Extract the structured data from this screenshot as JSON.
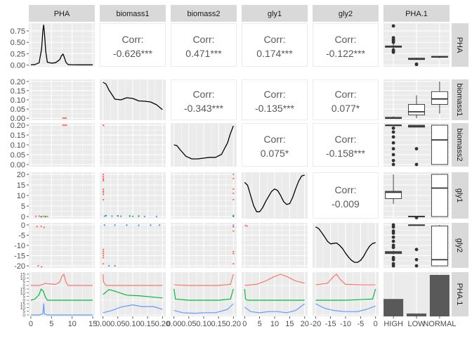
{
  "chart_data": {
    "type": "scatter",
    "variables": [
      "PHA",
      "biomass1",
      "biomass2",
      "gly1",
      "gly2",
      "PHA.1"
    ],
    "strip_labels_top": [
      "PHA",
      "biomass1",
      "biomass2",
      "gly1",
      "gly2",
      "PHA.1"
    ],
    "strip_labels_right": [
      "PHA",
      "biomass1",
      "biomass2",
      "gly1",
      "gly2",
      "PHA.1"
    ],
    "x_axes": [
      {
        "var": "PHA",
        "ticks": [
          0,
          5,
          10,
          15
        ],
        "labels": [
          "0",
          "5",
          "10",
          "15"
        ],
        "range": [
          -0.5,
          15.5
        ]
      },
      {
        "var": "biomass1",
        "ticks": [
          0,
          0.05,
          0.1,
          0.15,
          0.2
        ],
        "labels": [
          "0.00",
          "0.05",
          "0.10",
          "0.15",
          "0.20"
        ],
        "range": [
          -0.011,
          0.211
        ]
      },
      {
        "var": "biomass2",
        "ticks": [
          0,
          0.05,
          0.1,
          0.15,
          0.2
        ],
        "labels": [
          "0.00",
          "0.05",
          "0.10",
          "0.15",
          "0.20"
        ],
        "range": [
          -0.011,
          0.211
        ]
      },
      {
        "var": "gly1",
        "ticks": [
          0,
          5,
          10,
          15,
          20
        ],
        "labels": [
          "0",
          "5",
          "10",
          "15",
          "20"
        ],
        "range": [
          -1,
          21
        ]
      },
      {
        "var": "gly2",
        "ticks": [
          -20,
          -15,
          -10,
          -5,
          0
        ],
        "labels": [
          "-20",
          "-15",
          "-10",
          "-5",
          "0"
        ],
        "range": [
          -21,
          1
        ]
      },
      {
        "var": "PHA.1",
        "categories": [
          "HIGH",
          "LOW",
          "NORMAL"
        ],
        "labels": [
          "HIGH",
          "LOW",
          "NORMAL"
        ]
      }
    ],
    "y_axes": [
      {
        "var": "PHA",
        "ticks": [
          0,
          0.25,
          0.5,
          0.75
        ],
        "labels": [
          "0.00",
          "0.25",
          "0.50",
          "0.75"
        ],
        "range": [
          -0.04,
          0.92
        ]
      },
      {
        "var": "biomass1",
        "ticks": [
          0,
          0.05,
          0.1,
          0.15,
          0.2
        ],
        "labels": [
          "0.00",
          "0.05",
          "0.10",
          "0.15",
          "0.20"
        ],
        "range": [
          -0.011,
          0.211
        ]
      },
      {
        "var": "biomass2",
        "ticks": [
          0,
          0.05,
          0.1,
          0.15,
          0.2
        ],
        "labels": [
          "0.00",
          "0.05",
          "0.10",
          "0.15",
          "0.20"
        ],
        "range": [
          -0.011,
          0.211
        ]
      },
      {
        "var": "gly1",
        "ticks": [
          0,
          5,
          10,
          15,
          20
        ],
        "labels": [
          "0",
          "5",
          "10",
          "15",
          "20"
        ],
        "range": [
          -1,
          21
        ]
      },
      {
        "var": "gly2",
        "ticks": [
          -20,
          -15,
          -10,
          -5,
          0
        ],
        "labels": [
          "-20",
          "-15",
          "-10",
          "-5",
          "0"
        ],
        "range": [
          -21,
          1
        ]
      },
      {
        "var": "PHA.1",
        "sub_ticks": [
          0,
          5,
          10,
          15
        ],
        "sub_labels": [
          "0",
          "5",
          "10",
          "15"
        ]
      }
    ],
    "correlations": [
      {
        "x": "biomass1",
        "y": "PHA",
        "title": "Corr:",
        "value": "-0.626***"
      },
      {
        "x": "biomass2",
        "y": "PHA",
        "title": "Corr:",
        "value": "0.471***"
      },
      {
        "x": "gly1",
        "y": "PHA",
        "title": "Corr:",
        "value": "0.174***"
      },
      {
        "x": "gly2",
        "y": "PHA",
        "title": "Corr:",
        "value": "-0.122***"
      },
      {
        "x": "biomass2",
        "y": "biomass1",
        "title": "Corr:",
        "value": "-0.343***"
      },
      {
        "x": "gly1",
        "y": "biomass1",
        "title": "Corr:",
        "value": "-0.135***"
      },
      {
        "x": "gly2",
        "y": "biomass1",
        "title": "Corr:",
        "value": "0.077*"
      },
      {
        "x": "gly1",
        "y": "biomass2",
        "title": "Corr:",
        "value": "0.075*"
      },
      {
        "x": "gly2",
        "y": "biomass2",
        "title": "Corr:",
        "value": "-0.158***"
      },
      {
        "x": "gly2",
        "y": "gly1",
        "title": "Corr:",
        "value": "-0.009"
      }
    ],
    "densities": [
      {
        "var": "PHA",
        "x": [
          0,
          1,
          2,
          2.6,
          2.9,
          3.1,
          3.3,
          3.6,
          4,
          5,
          6,
          7,
          7.4,
          7.8,
          8.1,
          8.5,
          9,
          10,
          12,
          15
        ],
        "y": [
          0.005,
          0.01,
          0.05,
          0.35,
          0.75,
          0.88,
          0.7,
          0.3,
          0.06,
          0.04,
          0.05,
          0.12,
          0.2,
          0.24,
          0.17,
          0.06,
          0.01,
          0.005,
          0.003,
          0.003
        ]
      },
      {
        "var": "biomass1",
        "x": [
          0,
          0.01,
          0.02,
          0.04,
          0.06,
          0.08,
          0.1,
          0.12,
          0.14,
          0.16,
          0.18,
          0.2
        ],
        "y": [
          1.0,
          0.95,
          0.78,
          0.52,
          0.5,
          0.56,
          0.54,
          0.47,
          0.46,
          0.44,
          0.36,
          0.22
        ]
      },
      {
        "var": "biomass2",
        "x": [
          0,
          0.01,
          0.02,
          0.04,
          0.06,
          0.08,
          0.1,
          0.12,
          0.14,
          0.16,
          0.18,
          0.19,
          0.2
        ],
        "y": [
          0.5,
          0.48,
          0.38,
          0.2,
          0.13,
          0.13,
          0.15,
          0.17,
          0.17,
          0.25,
          0.55,
          0.8,
          1.0
        ]
      },
      {
        "var": "gly1",
        "x": [
          0,
          1,
          2,
          3,
          4,
          5,
          6,
          7,
          8,
          9,
          10,
          11,
          12,
          13,
          14,
          15,
          16,
          17,
          18,
          19,
          20
        ],
        "y": [
          0.82,
          0.75,
          0.5,
          0.25,
          0.1,
          0.1,
          0.2,
          0.35,
          0.48,
          0.6,
          0.66,
          0.62,
          0.5,
          0.35,
          0.28,
          0.3,
          0.45,
          0.66,
          0.85,
          0.98,
          1.0
        ]
      },
      {
        "var": "gly2",
        "x": [
          -20,
          -19,
          -18,
          -17,
          -16,
          -15,
          -14,
          -13,
          -12,
          -11,
          -10,
          -9,
          -8,
          -7,
          -6,
          -5,
          -4,
          -3,
          -2,
          -1,
          0
        ],
        "y": [
          0.97,
          0.93,
          0.83,
          0.72,
          0.6,
          0.54,
          0.55,
          0.56,
          0.5,
          0.42,
          0.3,
          0.2,
          0.12,
          0.07,
          0.07,
          0.12,
          0.22,
          0.36,
          0.48,
          0.55,
          0.57
        ]
      }
    ],
    "group_colors": {
      "HIGH": "#F8766D",
      "LOW": "#00BA38",
      "NORMAL": "#619CFF"
    },
    "boxplots_vs_group": [
      {
        "y": "PHA",
        "stats": [
          {
            "group": "HIGH",
            "min": 0.35,
            "q1": 0.39,
            "median": 0.4,
            "q3": 0.42,
            "max": 0.48,
            "outliers": [
              0.28,
              0.3,
              0.33,
              0.5,
              0.53,
              0.56,
              0.6,
              0.86
            ]
          },
          {
            "group": "LOW",
            "min": 0.11,
            "q1": 0.12,
            "median": 0.13,
            "q3": 0.15,
            "max": 0.16,
            "outliers": [
              0.01,
              0.02
            ]
          },
          {
            "group": "NORMAL",
            "min": 0.15,
            "q1": 0.17,
            "median": 0.18,
            "q3": 0.19,
            "max": 0.2,
            "outliers": []
          }
        ]
      },
      {
        "y": "biomass1",
        "stats": [
          {
            "group": "HIGH",
            "min": 0,
            "q1": 0,
            "median": 0,
            "q3": 0.005,
            "max": 0.01,
            "outliers": []
          },
          {
            "group": "LOW",
            "min": 0,
            "q1": 0.018,
            "median": 0.035,
            "q3": 0.075,
            "max": 0.125,
            "outliers": []
          },
          {
            "group": "NORMAL",
            "min": 0.025,
            "q1": 0.075,
            "median": 0.105,
            "q3": 0.145,
            "max": 0.2,
            "outliers": []
          }
        ]
      },
      {
        "y": "biomass2",
        "stats": [
          {
            "group": "HIGH",
            "min": 0.2,
            "q1": 0.2,
            "median": 0.2,
            "q3": 0.2,
            "max": 0.2,
            "outliers": [
              0,
              0.02,
              0.05,
              0.08,
              0.11,
              0.14,
              0.165,
              0.185
            ]
          },
          {
            "group": "LOW",
            "min": 0.19,
            "q1": 0.19,
            "median": 0.195,
            "q3": 0.2,
            "max": 0.2,
            "outliers": [
              0,
              0.08
            ]
          },
          {
            "group": "NORMAL",
            "min": 0,
            "q1": 0,
            "median": 0.125,
            "q3": 0.2,
            "max": 0.2,
            "outliers": []
          }
        ]
      },
      {
        "y": "gly1",
        "stats": [
          {
            "group": "HIGH",
            "min": 6,
            "q1": 8.5,
            "median": 11.5,
            "q3": 12,
            "max": 20,
            "outliers": []
          },
          {
            "group": "LOW",
            "min": 0,
            "q1": 0,
            "median": 0,
            "q3": 0.2,
            "max": 0.2,
            "outliers": [
              -0.5
            ]
          },
          {
            "group": "NORMAL",
            "min": 0,
            "q1": 0,
            "median": 13.5,
            "q3": 20,
            "max": 20,
            "outliers": []
          }
        ]
      },
      {
        "y": "gly2",
        "stats": [
          {
            "group": "HIGH",
            "min": -14.5,
            "q1": -14,
            "median": -13.5,
            "q3": -13,
            "max": -12.5,
            "outliers": [
              -20,
              -19,
              -17,
              -16,
              -11,
              -10,
              -8,
              -6,
              -4,
              -3,
              -1,
              0
            ]
          },
          {
            "group": "LOW",
            "min": -0.3,
            "q1": -0.2,
            "median": -0.1,
            "q3": 0,
            "max": 0,
            "outliers": [
              -20,
              -17,
              -12
            ]
          },
          {
            "group": "NORMAL",
            "min": -20,
            "q1": -20,
            "median": -17,
            "q3": -0.5,
            "max": 0,
            "outliers": []
          }
        ]
      }
    ],
    "group_counts": {
      "categories": [
        "HIGH",
        "LOW",
        "NORMAL"
      ],
      "relative": [
        0.42,
        0.07,
        1.0
      ]
    },
    "grouped_histograms": [
      {
        "x": "PHA",
        "HIGH": {
          "x": [
            0,
            2,
            3,
            3.5,
            4,
            6,
            7,
            7.5,
            8,
            8.5,
            9,
            11,
            15
          ],
          "y": [
            0,
            0,
            0.1,
            0.2,
            0.15,
            0.1,
            0.3,
            0.8,
            1.0,
            0.3,
            0,
            0,
            0
          ]
        },
        "LOW": {
          "x": [
            0,
            1,
            2,
            2.5,
            3,
            3.5,
            4,
            6,
            15
          ],
          "y": [
            0,
            0.1,
            0.5,
            1.0,
            0.8,
            0.3,
            0,
            0,
            0
          ]
        },
        "NORMAL": {
          "x": [
            0,
            2,
            2.9,
            3.1,
            3.3,
            4,
            15
          ],
          "y": [
            0,
            0,
            0.1,
            1.0,
            0.1,
            0,
            0
          ]
        }
      },
      {
        "x": "biomass1",
        "HIGH": {
          "x": [
            0,
            0.002,
            0.01,
            0.05,
            0.1,
            0.15,
            0.2
          ],
          "y": [
            1.0,
            0.3,
            0,
            0,
            0,
            0,
            0
          ]
        },
        "LOW": {
          "x": [
            0,
            0.02,
            0.04,
            0.08,
            0.12,
            0.16,
            0.2
          ],
          "y": [
            0.5,
            0.95,
            0.8,
            0.45,
            0.4,
            0.3,
            0.2
          ]
        },
        "NORMAL": {
          "x": [
            0,
            0.03,
            0.06,
            0.1,
            0.13,
            0.17,
            0.2
          ],
          "y": [
            0.2,
            0.4,
            0.7,
            0.9,
            0.75,
            0.75,
            0.5
          ]
        }
      },
      {
        "x": "biomass2",
        "HIGH": {
          "x": [
            0,
            0.05,
            0.1,
            0.15,
            0.19,
            0.2
          ],
          "y": [
            0.05,
            0,
            0,
            0,
            0.1,
            1.0
          ]
        },
        "LOW": {
          "x": [
            0,
            0.005,
            0.05,
            0.15,
            0.19,
            0.2
          ],
          "y": [
            1.0,
            0.1,
            0,
            0,
            0.1,
            1.0
          ]
        },
        "NORMAL": {
          "x": [
            0,
            0.03,
            0.07,
            0.1,
            0.14,
            0.18,
            0.2
          ],
          "y": [
            0.4,
            0.2,
            0.15,
            0.2,
            0.2,
            0.5,
            1.0
          ]
        }
      },
      {
        "x": "gly1",
        "HIGH": {
          "x": [
            0,
            4,
            7,
            10,
            12,
            14,
            17,
            20
          ],
          "y": [
            0,
            0.1,
            0.4,
            0.8,
            1.0,
            0.8,
            0.4,
            0.2
          ]
        },
        "LOW": {
          "x": [
            0,
            0.3,
            1,
            20
          ],
          "y": [
            1.0,
            0.1,
            0,
            0
          ]
        },
        "NORMAL": {
          "x": [
            0,
            2,
            5,
            8,
            11,
            14,
            17,
            20
          ],
          "y": [
            0.7,
            0.3,
            0.2,
            0.3,
            0.3,
            0.2,
            0.4,
            1.0
          ]
        }
      },
      {
        "x": "gly2",
        "HIGH": {
          "x": [
            -20,
            -16,
            -14,
            -13,
            -12,
            -10,
            -5,
            0
          ],
          "y": [
            0.05,
            0.2,
            0.8,
            1.0,
            0.6,
            0.1,
            0.05,
            0.05
          ]
        },
        "LOW": {
          "x": [
            -20,
            -10,
            -1,
            0
          ],
          "y": [
            0,
            0,
            0.1,
            1.0
          ]
        },
        "NORMAL": {
          "x": [
            -20,
            -17,
            -14,
            -10,
            -6,
            -3,
            0
          ],
          "y": [
            1.0,
            0.6,
            0.4,
            0.3,
            0.3,
            0.5,
            0.8
          ]
        }
      }
    ]
  }
}
